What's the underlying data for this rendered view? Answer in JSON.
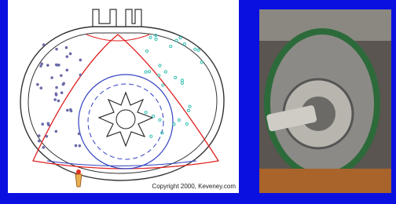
{
  "diagram": {
    "copyright": "Copyright 2000, Keveney.com"
  }
}
